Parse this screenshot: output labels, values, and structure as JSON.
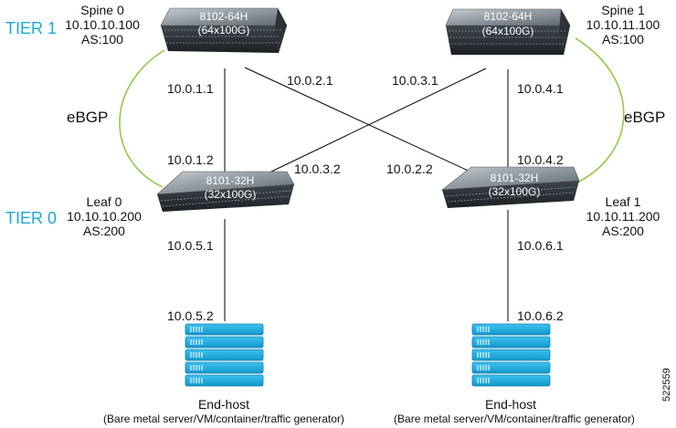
{
  "tiers": {
    "tier1": "TIER 1",
    "tier0": "TIER 0"
  },
  "protocol": {
    "left": "eBGP",
    "right": "eBGP"
  },
  "spine0": {
    "name": "Spine 0",
    "ip": "10.10.10.100",
    "as": "AS:100",
    "model": "8102-64H",
    "ports": "(64x100G)"
  },
  "spine1": {
    "name": "Spine 1",
    "ip": "10.10.11.100",
    "as": "AS:100",
    "model": "8102-64H",
    "ports": "(64x100G)"
  },
  "leaf0": {
    "name": "Leaf 0",
    "ip": "10.10.10.200",
    "as": "AS:200",
    "model": "8101-32H",
    "ports": "(32x100G)"
  },
  "leaf1": {
    "name": "Leaf 1",
    "ip": "10.10.11.200",
    "as": "AS:200",
    "model": "8101-32H",
    "ports": "(32x100G)"
  },
  "links": {
    "s0_l0_top": "10.0.1.1",
    "s0_l0_bottom": "10.0.1.2",
    "s0_l1_top": "10.0.2.1",
    "s0_l1_bottom": "10.0.2.2",
    "s1_l0_top": "10.0.3.1",
    "s1_l0_bottom": "10.0.3.2",
    "s1_l1_top": "10.0.4.1",
    "s1_l1_bottom": "10.0.4.2",
    "l0_h0_top": "10.0.5.1",
    "l0_h0_bottom": "10.0.5.2",
    "l1_h1_top": "10.0.6.1",
    "l1_h1_bottom": "10.0.6.2"
  },
  "host0": {
    "name": "End-host",
    "desc": "(Bare metal server/VM/container/traffic generator)"
  },
  "host1": {
    "name": "End-host",
    "desc": "(Bare metal server/VM/container/traffic generator)"
  },
  "figure_id": "522559",
  "colors": {
    "tier": "#19a7d9",
    "ebgp_arc": "#8cc63f",
    "host": "#1aa7db",
    "switch": "#6f7880"
  }
}
